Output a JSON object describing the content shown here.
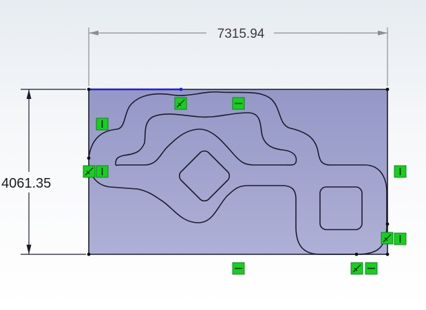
{
  "dimensions": {
    "width_value": "7315.94",
    "height_value": "4061.35"
  },
  "colors": {
    "sketch_fill": "#9ea0cc",
    "sketch_line": "#1b1b2b",
    "selected_line": "#1f1fd8",
    "relation_fill": "#14d11e",
    "relation_border": "#0a6b10",
    "dimension_line": "#8d8d8d"
  },
  "relations": [
    {
      "id": "horizontal-relation-top",
      "type": "horizontal"
    },
    {
      "id": "coincident-relation-top",
      "type": "coincident"
    },
    {
      "id": "vertical-relation-left-upper",
      "type": "vertical"
    },
    {
      "id": "coincident-relation-left",
      "type": "coincident"
    },
    {
      "id": "vertical-relation-left",
      "type": "vertical"
    },
    {
      "id": "vertical-relation-right",
      "type": "vertical"
    },
    {
      "id": "coincident-relation-right",
      "type": "coincident"
    },
    {
      "id": "vertical-relation-right-lower",
      "type": "vertical"
    },
    {
      "id": "horizontal-relation-bottom",
      "type": "horizontal"
    },
    {
      "id": "coincident-relation-bottom",
      "type": "coincident"
    },
    {
      "id": "horizontal-relation-bottom-right",
      "type": "horizontal"
    }
  ]
}
